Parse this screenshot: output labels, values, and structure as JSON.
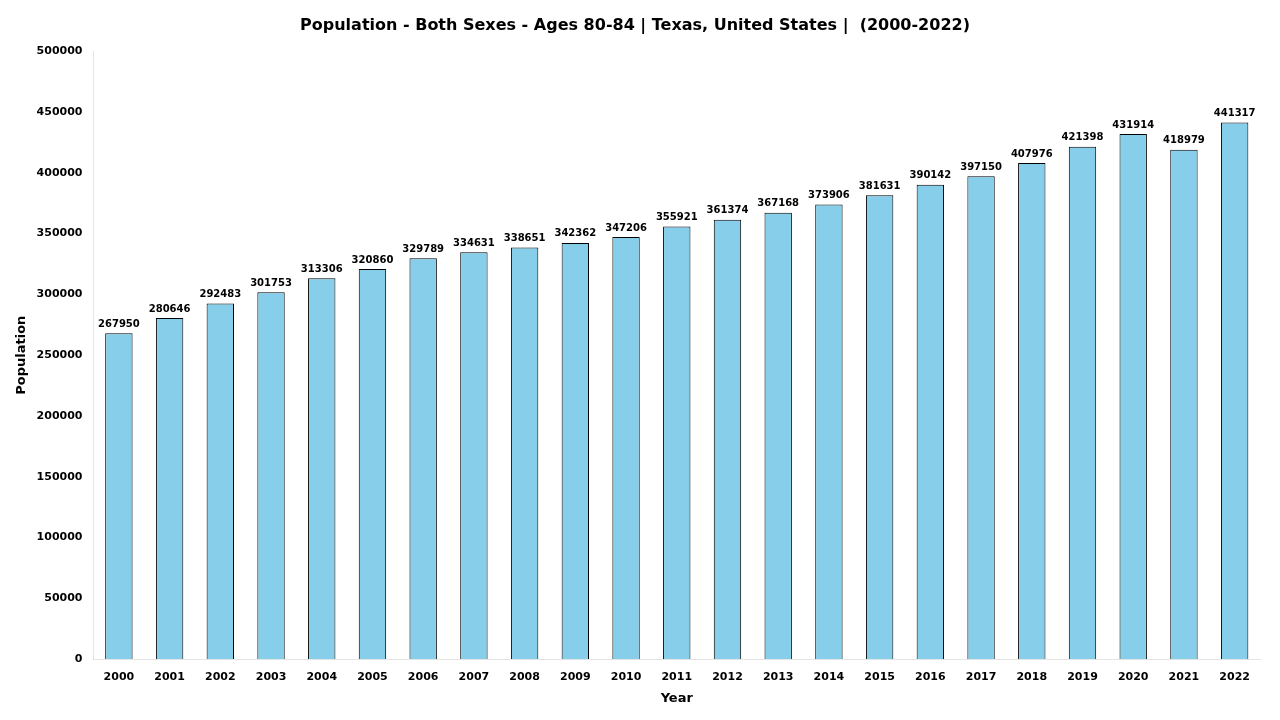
{
  "chart_data": {
    "type": "bar",
    "title": "Population - Both Sexes - Ages 80-84 | Texas, United States |  (2000-2022)",
    "x_label": "Year",
    "y_label": "Population",
    "categories": [
      "2000",
      "2001",
      "2002",
      "2003",
      "2004",
      "2005",
      "2006",
      "2007",
      "2008",
      "2009",
      "2010",
      "2011",
      "2012",
      "2013",
      "2014",
      "2015",
      "2016",
      "2017",
      "2018",
      "2019",
      "2020",
      "2021",
      "2022"
    ],
    "values": [
      267950,
      280646,
      292483,
      301753,
      313306,
      320860,
      329789,
      334631,
      338651,
      342362,
      347206,
      355921,
      361374,
      367168,
      373906,
      381631,
      390142,
      397150,
      407976,
      421398,
      431914,
      418979,
      441317
    ],
    "color": "#87CEEB",
    "ylim": [
      0,
      500000
    ],
    "yticks": [
      0,
      50000,
      100000,
      150000,
      200000,
      250000,
      300000,
      350000,
      400000,
      450000,
      500000
    ],
    "grid": false,
    "data_labels": true
  }
}
